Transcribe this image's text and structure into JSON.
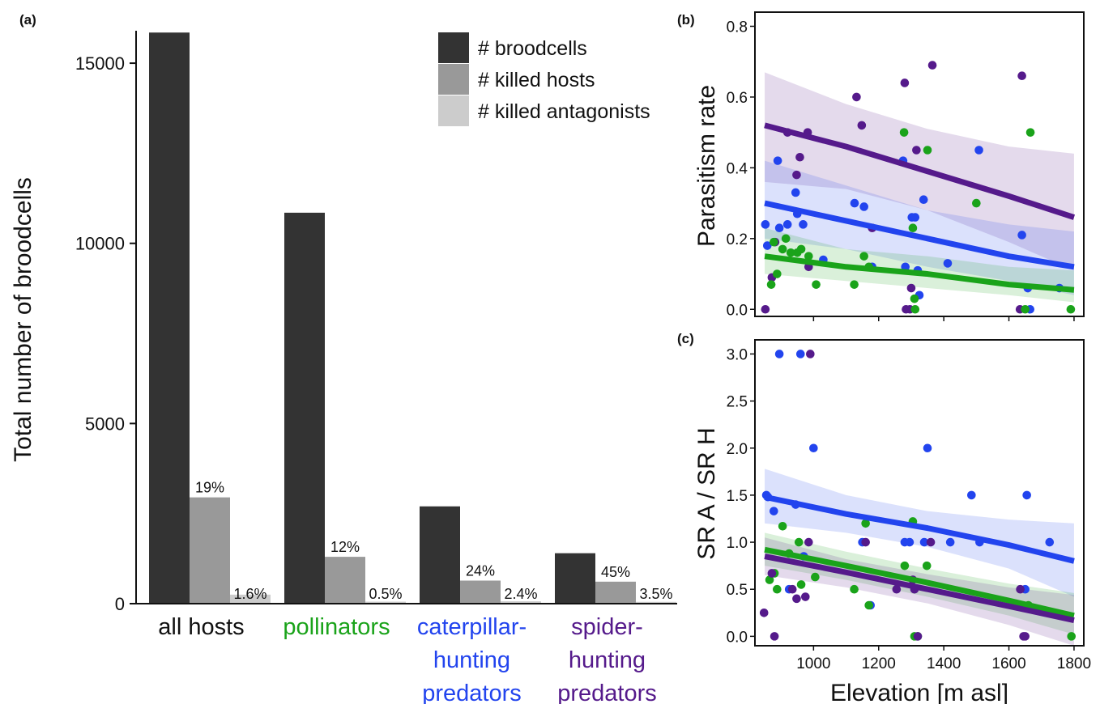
{
  "colors": {
    "broodcells": "#333333",
    "killed_hosts": "#999999",
    "killed_antagonists": "#cccccc",
    "pollinators": "#1aa31a",
    "caterpillar": "#2244ee",
    "spider": "#551a8b",
    "black": "#111111"
  },
  "chart_data": [
    {
      "panel": "(a)",
      "type": "bar",
      "ylabel": "Total number of broodcells",
      "xlabel": "",
      "ylim": [
        0,
        15900
      ],
      "yticks": [
        0,
        5000,
        10000,
        15000
      ],
      "categories": [
        {
          "lines": [
            "all hosts"
          ],
          "color": "black"
        },
        {
          "lines": [
            "pollinators"
          ],
          "color": "pollinators"
        },
        {
          "lines": [
            "caterpillar-",
            "hunting",
            "predators"
          ],
          "color": "caterpillar"
        },
        {
          "lines": [
            "spider-",
            "hunting",
            "predators"
          ],
          "color": "spider"
        }
      ],
      "series": [
        {
          "name": "# broodcells",
          "color": "broodcells",
          "values": [
            15850,
            10850,
            2700,
            1400
          ]
        },
        {
          "name": "# killed hosts",
          "color": "killed_hosts",
          "values": [
            2950,
            1300,
            640,
            610
          ]
        },
        {
          "name": "# killed antagonists",
          "color": "killed_antagonists",
          "values": [
            250,
            55,
            65,
            50
          ]
        }
      ],
      "labels": {
        "killed_hosts": [
          "19%",
          "12%",
          "24%",
          "45%"
        ],
        "killed_antagonists": [
          "1.6%",
          "0.5%",
          "2.4%",
          "3.5%"
        ]
      },
      "legend": "top-right"
    },
    {
      "panel": "(b)",
      "type": "scatter",
      "ylabel": "Parasitism rate",
      "xlabel": "",
      "xlim": [
        820,
        1830
      ],
      "ylim": [
        -0.02,
        0.84
      ],
      "xticks": [
        1000,
        1200,
        1400,
        1600,
        1800
      ],
      "yticks": [
        0.0,
        0.2,
        0.4,
        0.6,
        0.8
      ],
      "ytick_labels": [
        "0.0",
        "0.2",
        "0.4",
        "0.6",
        "0.8"
      ],
      "show_xtick_labels": false,
      "series": [
        {
          "group": "spider",
          "color": "spider",
          "fit": {
            "x": [
              850,
              1100,
              1350,
              1600,
              1800
            ],
            "y": [
              0.52,
              0.46,
              0.39,
              0.32,
              0.26
            ]
          },
          "band": {
            "upper": [
              0.67,
              0.58,
              0.51,
              0.46,
              0.44
            ],
            "lower": [
              0.36,
              0.34,
              0.28,
              0.19,
              0.11
            ]
          },
          "points": [
            [
              852,
              0.0
            ],
            [
              872,
              0.09
            ],
            [
              882,
              0.19
            ],
            [
              920,
              0.5
            ],
            [
              948,
              0.38
            ],
            [
              958,
              0.43
            ],
            [
              982,
              0.5
            ],
            [
              985,
              0.12
            ],
            [
              1132,
              0.6
            ],
            [
              1148,
              0.52
            ],
            [
              1180,
              0.23
            ],
            [
              1280,
              0.64
            ],
            [
              1284,
              0.0
            ],
            [
              1296,
              0.0
            ],
            [
              1300,
              0.06
            ],
            [
              1316,
              0.45
            ],
            [
              1365,
              0.69
            ],
            [
              1634,
              0.0
            ],
            [
              1640,
              0.66
            ]
          ]
        },
        {
          "group": "caterpillar",
          "color": "caterpillar",
          "fit": {
            "x": [
              850,
              1100,
              1350,
              1600,
              1800
            ],
            "y": [
              0.3,
              0.25,
              0.2,
              0.15,
              0.12
            ]
          },
          "band": {
            "upper": [
              0.42,
              0.35,
              0.28,
              0.24,
              0.22
            ],
            "lower": [
              0.2,
              0.17,
              0.12,
              0.08,
              0.04
            ]
          },
          "points": [
            [
              852,
              0.24
            ],
            [
              858,
              0.18
            ],
            [
              890,
              0.42
            ],
            [
              895,
              0.23
            ],
            [
              920,
              0.24
            ],
            [
              945,
              0.33
            ],
            [
              950,
              0.27
            ],
            [
              968,
              0.24
            ],
            [
              1030,
              0.14
            ],
            [
              1126,
              0.3
            ],
            [
              1155,
              0.29
            ],
            [
              1180,
              0.12
            ],
            [
              1275,
              0.42
            ],
            [
              1282,
              0.12
            ],
            [
              1302,
              0.26
            ],
            [
              1312,
              0.26
            ],
            [
              1320,
              0.11
            ],
            [
              1325,
              0.04
            ],
            [
              1338,
              0.31
            ],
            [
              1412,
              0.13
            ],
            [
              1508,
              0.45
            ],
            [
              1640,
              0.21
            ],
            [
              1658,
              0.06
            ],
            [
              1665,
              0.0
            ],
            [
              1755,
              0.06
            ]
          ]
        },
        {
          "group": "pollinators",
          "color": "pollinators",
          "fit": {
            "x": [
              850,
              1100,
              1350,
              1600,
              1800
            ],
            "y": [
              0.15,
              0.12,
              0.1,
              0.07,
              0.055
            ]
          },
          "band": {
            "upper": [
              0.23,
              0.17,
              0.15,
              0.12,
              0.11
            ],
            "lower": [
              0.1,
              0.08,
              0.06,
              0.04,
              0.02
            ]
          },
          "points": [
            [
              870,
              0.07
            ],
            [
              878,
              0.19
            ],
            [
              888,
              0.1
            ],
            [
              905,
              0.17
            ],
            [
              915,
              0.2
            ],
            [
              930,
              0.16
            ],
            [
              950,
              0.16
            ],
            [
              962,
              0.17
            ],
            [
              985,
              0.15
            ],
            [
              1008,
              0.07
            ],
            [
              1125,
              0.07
            ],
            [
              1155,
              0.15
            ],
            [
              1170,
              0.12
            ],
            [
              1278,
              0.5
            ],
            [
              1305,
              0.23
            ],
            [
              1310,
              0.03
            ],
            [
              1312,
              0.0
            ],
            [
              1350,
              0.45
            ],
            [
              1500,
              0.3
            ],
            [
              1650,
              0.0
            ],
            [
              1666,
              0.5
            ],
            [
              1790,
              0.0
            ]
          ]
        }
      ]
    },
    {
      "panel": "(c)",
      "type": "scatter",
      "ylabel": "SR A / SR H",
      "xlabel": "Elevation [m asl]",
      "xlim": [
        820,
        1830
      ],
      "ylim": [
        -0.1,
        3.15
      ],
      "xticks": [
        1000,
        1200,
        1400,
        1600,
        1800
      ],
      "xtick_labels": [
        "1000",
        "1200",
        "1400",
        "1600",
        "1800"
      ],
      "yticks": [
        0.0,
        0.5,
        1.0,
        1.5,
        2.0,
        2.5,
        3.0
      ],
      "ytick_labels": [
        "0.0",
        "0.5",
        "1.0",
        "1.5",
        "2.0",
        "2.5",
        "3.0"
      ],
      "show_xtick_labels": true,
      "series": [
        {
          "group": "caterpillar",
          "color": "caterpillar",
          "fit": {
            "x": [
              850,
              1100,
              1350,
              1600,
              1800
            ],
            "y": [
              1.48,
              1.3,
              1.15,
              0.97,
              0.8
            ]
          },
          "band": {
            "upper": [
              1.78,
              1.5,
              1.33,
              1.24,
              1.2
            ],
            "lower": [
              1.2,
              1.1,
              0.95,
              0.72,
              0.42
            ]
          },
          "points": [
            [
              855,
              1.5
            ],
            [
              860,
              1.48
            ],
            [
              878,
              1.33
            ],
            [
              895,
              3.0
            ],
            [
              925,
              0.5
            ],
            [
              945,
              1.4
            ],
            [
              960,
              3.0
            ],
            [
              970,
              0.85
            ],
            [
              1000,
              2.0
            ],
            [
              1150,
              1.0
            ],
            [
              1175,
              0.33
            ],
            [
              1280,
              1.0
            ],
            [
              1295,
              1.0
            ],
            [
              1340,
              1.0
            ],
            [
              1350,
              2.0
            ],
            [
              1420,
              1.0
            ],
            [
              1485,
              1.5
            ],
            [
              1510,
              1.0
            ],
            [
              1650,
              0.5
            ],
            [
              1655,
              1.5
            ],
            [
              1725,
              1.0
            ]
          ]
        },
        {
          "group": "pollinators",
          "color": "pollinators",
          "fit": {
            "x": [
              850,
              1100,
              1350,
              1600,
              1800
            ],
            "y": [
              0.92,
              0.75,
              0.57,
              0.38,
              0.22
            ]
          },
          "band": {
            "upper": [
              1.1,
              0.9,
              0.72,
              0.56,
              0.46
            ],
            "lower": [
              0.75,
              0.6,
              0.42,
              0.22,
              0.02
            ]
          },
          "points": [
            [
              865,
              0.6
            ],
            [
              880,
              0.67
            ],
            [
              888,
              0.5
            ],
            [
              905,
              1.17
            ],
            [
              925,
              0.88
            ],
            [
              955,
              1.0
            ],
            [
              962,
              0.55
            ],
            [
              1005,
              0.63
            ],
            [
              1125,
              0.5
            ],
            [
              1160,
              1.2
            ],
            [
              1170,
              0.33
            ],
            [
              1280,
              0.75
            ],
            [
              1305,
              1.22
            ],
            [
              1310,
              0.0
            ],
            [
              1320,
              0.0
            ],
            [
              1348,
              0.75
            ],
            [
              1660,
              0.33
            ],
            [
              1792,
              0.0
            ]
          ]
        },
        {
          "group": "spider",
          "color": "spider",
          "fit": {
            "x": [
              850,
              1100,
              1350,
              1600,
              1800
            ],
            "y": [
              0.85,
              0.68,
              0.5,
              0.32,
              0.17
            ]
          },
          "band": {
            "upper": [
              1.05,
              0.82,
              0.66,
              0.52,
              0.44
            ],
            "lower": [
              0.65,
              0.52,
              0.35,
              0.12,
              -0.1
            ]
          },
          "points": [
            [
              848,
              0.25
            ],
            [
              872,
              0.67
            ],
            [
              880,
              0.0
            ],
            [
              935,
              0.5
            ],
            [
              948,
              0.4
            ],
            [
              975,
              0.42
            ],
            [
              985,
              1.0
            ],
            [
              990,
              3.0
            ],
            [
              1160,
              1.0
            ],
            [
              1255,
              0.5
            ],
            [
              1305,
              0.6
            ],
            [
              1310,
              0.5
            ],
            [
              1320,
              0.0
            ],
            [
              1360,
              1.0
            ],
            [
              1635,
              0.5
            ],
            [
              1645,
              0.0
            ],
            [
              1650,
              0.0
            ]
          ]
        }
      ]
    }
  ]
}
